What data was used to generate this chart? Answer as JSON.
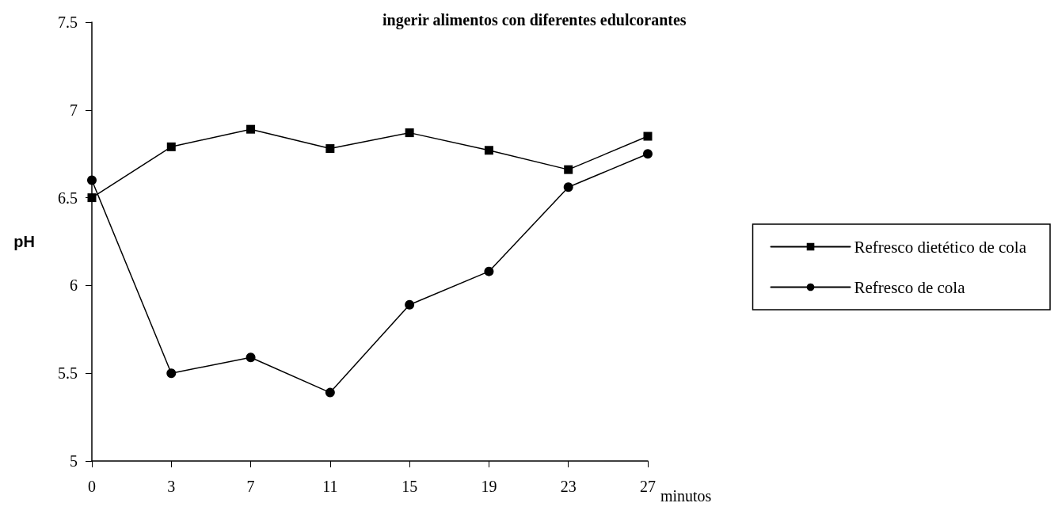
{
  "chart_data": {
    "type": "line",
    "title": "ingerir alimentos con diferentes edulcorantes",
    "xlabel": "minutos",
    "ylabel": "pH",
    "categories": [
      "0",
      "3",
      "7",
      "11",
      "15",
      "19",
      "23",
      "27"
    ],
    "series": [
      {
        "name": "Refresco dietético de cola",
        "color": "#000000",
        "marker": "square",
        "values": [
          6.5,
          6.79,
          6.89,
          6.78,
          6.87,
          6.77,
          6.66,
          6.85
        ]
      },
      {
        "name": "Refresco de cola",
        "color": "#000000",
        "marker": "circle",
        "values": [
          6.6,
          5.5,
          5.59,
          5.39,
          5.89,
          6.08,
          6.56,
          6.75
        ]
      }
    ],
    "ylim": [
      5,
      7.5
    ],
    "yticks": [
      5,
      5.5,
      6,
      6.5,
      7,
      7.5
    ],
    "grid": false,
    "legend": "right",
    "line_style": "solid"
  }
}
